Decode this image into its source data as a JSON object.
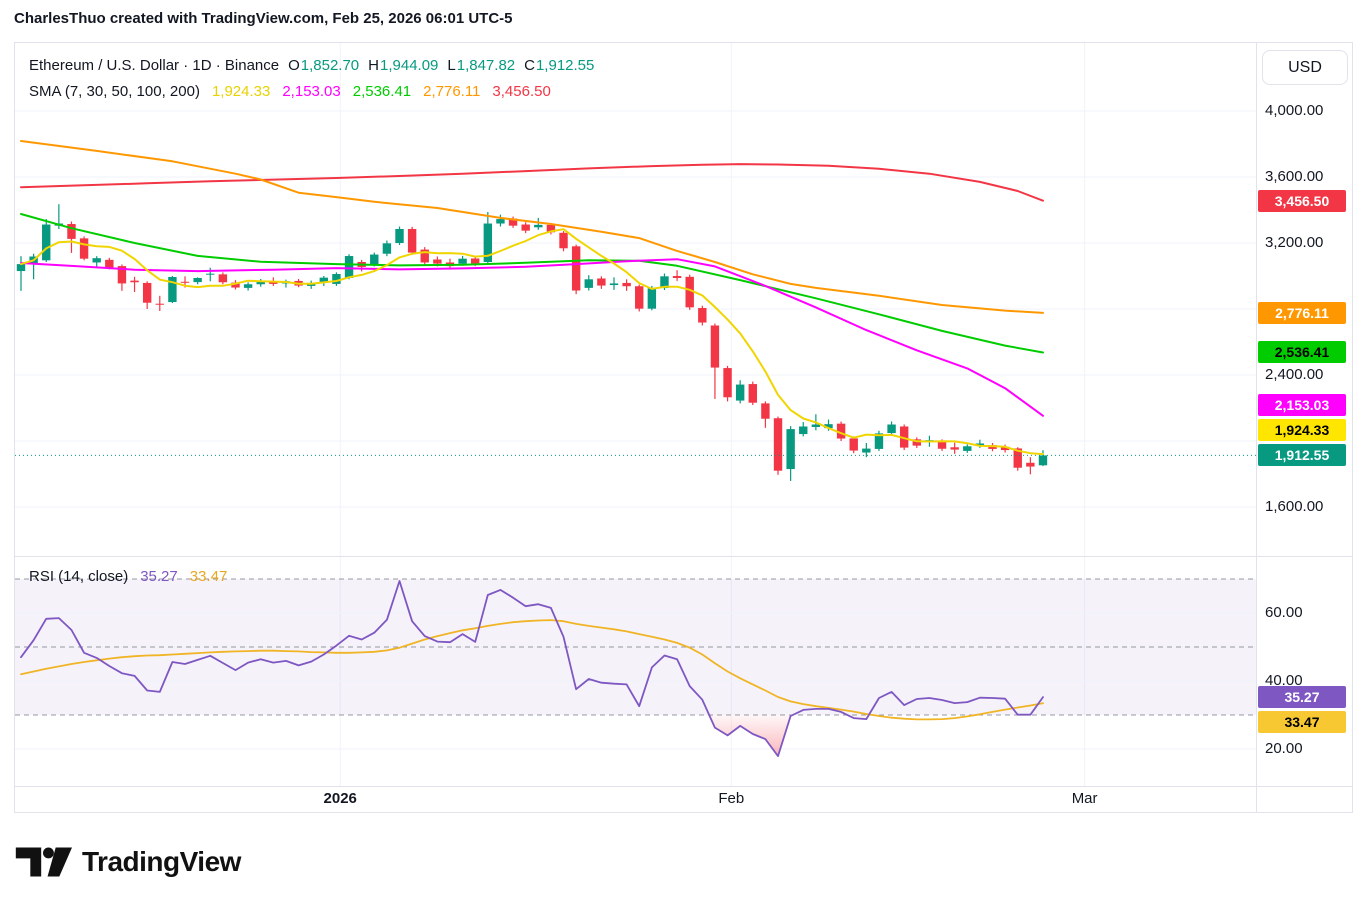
{
  "attribution": "CharlesThuo created with TradingView.com, Feb 25, 2026 06:01 UTC-5",
  "legend": {
    "title": "Ethereum / U.S. Dollar · 1D · Binance",
    "ohlc": [
      {
        "k": "O",
        "v": "1,852.70"
      },
      {
        "k": "H",
        "v": "1,944.09"
      },
      {
        "k": "L",
        "v": "1,847.82"
      },
      {
        "k": "C",
        "v": "1,912.55"
      }
    ],
    "ohlc_color": "#089981",
    "sma_label": "SMA (7, 30, 50, 100, 200)",
    "sma_values": [
      {
        "v": "1,924.33",
        "c": "#e8d200"
      },
      {
        "v": "2,153.03",
        "c": "#ff00ff"
      },
      {
        "v": "2,536.41",
        "c": "#00cc00"
      },
      {
        "v": "2,776.11",
        "c": "#ff9800"
      },
      {
        "v": "3,456.50",
        "c": "#f23645"
      }
    ],
    "rsi_label": "RSI (14, close)",
    "rsi_values": [
      {
        "v": "35.27",
        "c": "#7e57c2"
      },
      {
        "v": "33.47",
        "c": "#e9a820"
      }
    ]
  },
  "price_axis": {
    "currency_button": "USD",
    "ticks": [
      {
        "text": "4,000.00",
        "price": 4000
      },
      {
        "text": "3,600.00",
        "price": 3600
      },
      {
        "text": "3,200.00",
        "price": 3200
      },
      {
        "text": "2,400.00",
        "price": 2400
      },
      {
        "text": "1,600.00",
        "price": 1600
      }
    ],
    "labels": [
      {
        "name": "sma200-price-label",
        "text": "3,456.50",
        "price": 3456.5,
        "bg": "#f23645",
        "fg": "#ffffff"
      },
      {
        "name": "sma100-price-label",
        "text": "2,776.11",
        "price": 2776.11,
        "bg": "#ff9800",
        "fg": "#ffffff"
      },
      {
        "name": "sma50-price-label",
        "text": "2,536.41",
        "price": 2536.41,
        "bg": "#00cc00",
        "fg": "#000000"
      },
      {
        "name": "sma30-price-label",
        "text": "2,153.03",
        "price": 2153.03,
        "bg": "#ff00ff",
        "fg": "#ffffff"
      },
      {
        "name": "sma7-price-label",
        "text": "1,924.33",
        "price": 1924.33,
        "bg": "#ffe600",
        "fg": "#000000"
      },
      {
        "name": "last-price-label",
        "text": "1,912.55",
        "price": 1912.55,
        "bg": "#089981",
        "fg": "#ffffff",
        "anchor": true
      }
    ]
  },
  "rsi_axis": {
    "ticks": [
      {
        "text": "60.00",
        "value": 60
      },
      {
        "text": "40.00",
        "value": 40
      },
      {
        "text": "20.00",
        "value": 20
      }
    ],
    "labels": [
      {
        "name": "rsi-value-label",
        "text": "35.27",
        "value": 35.27,
        "bg": "#7e57c2",
        "fg": "#ffffff",
        "anchor": true
      },
      {
        "name": "rsi-ma-value-label",
        "text": "33.47",
        "value": 33.47,
        "bg": "#f8c832",
        "fg": "#000000"
      }
    ]
  },
  "time_axis": {
    "labels": [
      {
        "text": "2026",
        "i": 25.3,
        "bold": true
      },
      {
        "text": "Feb",
        "i": 56.3,
        "bold": false
      },
      {
        "text": "Mar",
        "i": 84.3,
        "bold": false
      }
    ]
  },
  "footer": {
    "logo_text": "TradingView"
  },
  "chart_data": {
    "type": "candlestick",
    "title": "Ethereum / U.S. Dollar",
    "interval": "1D",
    "exchange": "Binance",
    "currency": "USD",
    "last_bar": {
      "open": 1852.7,
      "high": 1944.09,
      "low": 1847.82,
      "close": 1912.55
    },
    "current_price": 1912.55,
    "up_color": "#089981",
    "down_color": "#f23645",
    "price_gridlines": [
      4000,
      3600,
      3200,
      2800,
      2400,
      2000,
      1600
    ],
    "price_axis_range": [
      1450,
      4100
    ],
    "candles": [
      [
        3030,
        3120,
        2910,
        3072
      ],
      [
        3072,
        3135,
        2980,
        3118
      ],
      [
        3095,
        3345,
        3085,
        3312
      ],
      [
        3305,
        3435,
        3285,
        3318
      ],
      [
        3315,
        3330,
        3140,
        3225
      ],
      [
        3228,
        3240,
        3095,
        3105
      ],
      [
        3082,
        3120,
        3050,
        3108
      ],
      [
        3098,
        3110,
        3040,
        3050
      ],
      [
        3060,
        3070,
        2910,
        2955
      ],
      [
        2972,
        2995,
        2903,
        2962
      ],
      [
        2958,
        2968,
        2800,
        2838
      ],
      [
        2832,
        2880,
        2788,
        2828
      ],
      [
        2842,
        3000,
        2836,
        2994
      ],
      [
        2965,
        2998,
        2930,
        2962
      ],
      [
        2963,
        2992,
        2950,
        2988
      ],
      [
        3008,
        3050,
        2968,
        3014
      ],
      [
        3010,
        3022,
        2950,
        2962
      ],
      [
        2960,
        2975,
        2918,
        2930
      ],
      [
        2928,
        2962,
        2912,
        2950
      ],
      [
        2950,
        2982,
        2935,
        2968
      ],
      [
        2965,
        2992,
        2940,
        2952
      ],
      [
        2955,
        2978,
        2930,
        2968
      ],
      [
        2970,
        2982,
        2932,
        2942
      ],
      [
        2940,
        2972,
        2922,
        2958
      ],
      [
        2958,
        3000,
        2940,
        2990
      ],
      [
        2952,
        3022,
        2940,
        3012
      ],
      [
        2988,
        3132,
        2980,
        3121
      ],
      [
        3085,
        3098,
        3028,
        3055
      ],
      [
        3072,
        3142,
        3058,
        3130
      ],
      [
        3135,
        3215,
        3120,
        3198
      ],
      [
        3200,
        3300,
        3188,
        3285
      ],
      [
        3285,
        3298,
        3128,
        3142
      ],
      [
        3160,
        3175,
        3065,
        3082
      ],
      [
        3100,
        3118,
        3058,
        3075
      ],
      [
        3082,
        3105,
        3042,
        3060
      ],
      [
        3074,
        3122,
        3062,
        3105
      ],
      [
        3106,
        3118,
        3060,
        3076
      ],
      [
        3085,
        3388,
        3075,
        3318
      ],
      [
        3318,
        3372,
        3300,
        3345
      ],
      [
        3348,
        3360,
        3292,
        3305
      ],
      [
        3312,
        3326,
        3260,
        3275
      ],
      [
        3295,
        3352,
        3280,
        3310
      ],
      [
        3310,
        3322,
        3252,
        3265
      ],
      [
        3262,
        3272,
        3150,
        3168
      ],
      [
        3180,
        3190,
        2890,
        2912
      ],
      [
        2928,
        3005,
        2912,
        2980
      ],
      [
        2985,
        2998,
        2922,
        2942
      ],
      [
        2945,
        2992,
        2916,
        2955
      ],
      [
        2958,
        2980,
        2910,
        2938
      ],
      [
        2938,
        2948,
        2785,
        2802
      ],
      [
        2802,
        2940,
        2792,
        2925
      ],
      [
        2927,
        3015,
        2915,
        2998
      ],
      [
        3000,
        3035,
        2970,
        2988
      ],
      [
        2995,
        3008,
        2795,
        2810
      ],
      [
        2806,
        2820,
        2700,
        2718
      ],
      [
        2700,
        2712,
        2255,
        2445
      ],
      [
        2442,
        2455,
        2240,
        2265
      ],
      [
        2245,
        2368,
        2228,
        2342
      ],
      [
        2345,
        2360,
        2218,
        2232
      ],
      [
        2228,
        2240,
        2080,
        2135
      ],
      [
        2138,
        2148,
        1795,
        1820
      ],
      [
        1830,
        2090,
        1758,
        2072
      ],
      [
        2042,
        2115,
        2028,
        2088
      ],
      [
        2085,
        2162,
        2065,
        2100
      ],
      [
        2078,
        2130,
        2062,
        2102
      ],
      [
        2105,
        2118,
        2000,
        2015
      ],
      [
        2016,
        2028,
        1926,
        1942
      ],
      [
        1930,
        1988,
        1902,
        1954
      ],
      [
        1952,
        2062,
        1940,
        2046
      ],
      [
        2048,
        2118,
        2036,
        2100
      ],
      [
        2088,
        2100,
        1945,
        1960
      ],
      [
        2010,
        2022,
        1958,
        1972
      ],
      [
        1995,
        2032,
        1965,
        2005
      ],
      [
        1998,
        2010,
        1940,
        1953
      ],
      [
        1962,
        1990,
        1922,
        1948
      ],
      [
        1940,
        1980,
        1928,
        1968
      ],
      [
        1972,
        2008,
        1958,
        1985
      ],
      [
        1975,
        1988,
        1938,
        1952
      ],
      [
        1965,
        1978,
        1930,
        1945
      ],
      [
        1955,
        1962,
        1820,
        1838
      ],
      [
        1868,
        1902,
        1798,
        1845
      ],
      [
        1852.7,
        1944.09,
        1847.82,
        1912.55
      ]
    ],
    "sma": {
      "sma7": {
        "period": 7,
        "color": "#f0d500",
        "last": 1924.33,
        "computed_from_closes": true
      },
      "sma30": {
        "period": 30,
        "color": "#ff00ff",
        "last": 2153.03,
        "points": [
          [
            0,
            3079
          ],
          [
            4,
            3061
          ],
          [
            9,
            3038
          ],
          [
            14,
            3030
          ],
          [
            20,
            3038
          ],
          [
            25,
            3048
          ],
          [
            30,
            3040
          ],
          [
            35,
            3046
          ],
          [
            40,
            3056
          ],
          [
            44,
            3072
          ],
          [
            48,
            3090
          ],
          [
            52,
            3102
          ],
          [
            55,
            3058
          ],
          [
            59,
            2940
          ],
          [
            63,
            2810
          ],
          [
            67,
            2672
          ],
          [
            71,
            2550
          ],
          [
            75,
            2440
          ],
          [
            78,
            2320
          ],
          [
            81,
            2153.03
          ]
        ]
      },
      "sma50": {
        "period": 50,
        "color": "#00cc00",
        "last": 2536.41,
        "points": [
          [
            0,
            3376
          ],
          [
            4,
            3290
          ],
          [
            9,
            3200
          ],
          [
            14,
            3122
          ],
          [
            19,
            3086
          ],
          [
            25,
            3072
          ],
          [
            30,
            3064
          ],
          [
            35,
            3068
          ],
          [
            40,
            3080
          ],
          [
            45,
            3096
          ],
          [
            49,
            3092
          ],
          [
            52,
            3062
          ],
          [
            57,
            2975
          ],
          [
            63,
            2865
          ],
          [
            68,
            2768
          ],
          [
            73,
            2667
          ],
          [
            78,
            2578
          ],
          [
            81,
            2536.41
          ]
        ]
      },
      "sma100": {
        "period": 100,
        "color": "#ff9800",
        "last": 2776.11,
        "points": [
          [
            0,
            3818
          ],
          [
            6,
            3758
          ],
          [
            12,
            3695
          ],
          [
            17,
            3620
          ],
          [
            19,
            3585
          ],
          [
            22,
            3505
          ],
          [
            25,
            3478
          ],
          [
            28,
            3450
          ],
          [
            33,
            3412
          ],
          [
            38,
            3352
          ],
          [
            42,
            3315
          ],
          [
            46,
            3268
          ],
          [
            49,
            3230
          ],
          [
            52,
            3152
          ],
          [
            55,
            3085
          ],
          [
            58,
            3010
          ],
          [
            61,
            2952
          ],
          [
            63,
            2928
          ],
          [
            68,
            2880
          ],
          [
            73,
            2824
          ],
          [
            78,
            2790
          ],
          [
            81,
            2776.11
          ]
        ]
      },
      "sma200": {
        "period": 200,
        "color": "#f23645",
        "last": 3456.5,
        "points": [
          [
            0,
            3538
          ],
          [
            5,
            3550
          ],
          [
            10,
            3562
          ],
          [
            15,
            3574
          ],
          [
            20,
            3584
          ],
          [
            25,
            3594
          ],
          [
            30,
            3606
          ],
          [
            35,
            3620
          ],
          [
            40,
            3636
          ],
          [
            45,
            3652
          ],
          [
            50,
            3666
          ],
          [
            54,
            3674
          ],
          [
            57,
            3678
          ],
          [
            60,
            3676
          ],
          [
            64,
            3668
          ],
          [
            68,
            3650
          ],
          [
            72,
            3620
          ],
          [
            76,
            3570
          ],
          [
            79,
            3515
          ],
          [
            81,
            3456.5
          ]
        ]
      }
    },
    "rsi": {
      "period": 14,
      "source": "close",
      "color": "#7e57c2",
      "ma_color": "#f0b425",
      "last": 35.27,
      "ma_last": 33.47,
      "levels": [
        70,
        50,
        30
      ],
      "ticks": [
        60,
        40,
        20
      ],
      "band_fill": "rgba(126,87,194,0.08)",
      "values": [
        47,
        52,
        58.3,
        58.5,
        55,
        48.3,
        46.8,
        44.4,
        42.3,
        41.5,
        37.2,
        36.8,
        45.6,
        45,
        46.2,
        47.4,
        45.3,
        43.2,
        45.4,
        46.4,
        45.4,
        45.9,
        44.6,
        45.7,
        47.8,
        50.4,
        53.3,
        52.2,
        54.2,
        58,
        69.4,
        57.6,
        53.2,
        51.6,
        51.4,
        53.8,
        51.5,
        65.3,
        66.8,
        64.5,
        62,
        62.6,
        61.5,
        53,
        37.6,
        40.6,
        39.5,
        39.2,
        39,
        32.6,
        44,
        47.5,
        46.4,
        38.5,
        34.5,
        26.3,
        24,
        26.8,
        24.4,
        22.9,
        17.9,
        29.7,
        31.5,
        31.8,
        31.8,
        30.9,
        29.1,
        28.8,
        35,
        36.8,
        32.9,
        34.7,
        35,
        34.4,
        33.5,
        33.8,
        35.1,
        35,
        34.8,
        30.1,
        30.1,
        35.27
      ],
      "ma": [
        42,
        42.8,
        43.6,
        44.3,
        45,
        45.6,
        46.1,
        46.6,
        47,
        47.3,
        47.5,
        47.6,
        47.8,
        48,
        48.2,
        48.4,
        48.6,
        48.7,
        48.8,
        48.9,
        48.9,
        48.8,
        48.7,
        48.5,
        48.4,
        48.3,
        48.3,
        48.4,
        48.6,
        49,
        49.8,
        51,
        52.2,
        53.2,
        54.1,
        54.9,
        55.5,
        56.2,
        56.8,
        57.3,
        57.6,
        57.8,
        57.9,
        57.6,
        56.8,
        56.2,
        55.7,
        55.2,
        54.6,
        53.8,
        53,
        52.2,
        51.2,
        49.8,
        47.8,
        45.2,
        42.8,
        40.8,
        39,
        37.2,
        35.3,
        34,
        33.2,
        32.6,
        32.1,
        31.6,
        31,
        30.3,
        29.7,
        29.2,
        28.9,
        28.7,
        28.7,
        28.8,
        29.1,
        29.6,
        30.2,
        30.9,
        31.6,
        32.2,
        32.8,
        33.47
      ]
    }
  }
}
